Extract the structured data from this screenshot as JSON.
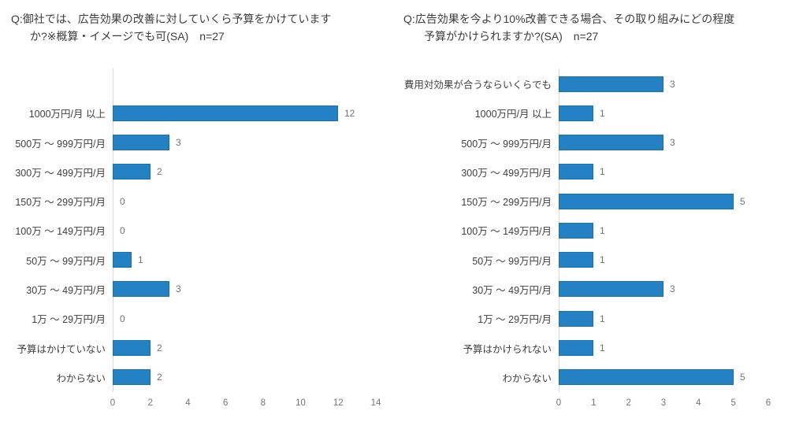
{
  "colors": {
    "bar": "#2381C4",
    "bar_border": "#1A6FAE",
    "axis_line": "#D9D9D9",
    "title_text": "#3C3C3C",
    "category_text": "#404040",
    "value_text": "#737373",
    "tick_text": "#757575",
    "background": "#FFFFFF"
  },
  "chart_data": [
    {
      "id": "current-budget",
      "type": "bar",
      "orientation": "horizontal",
      "title": "Q:御社では、広告効果の改善に対していくら予算をかけていますか?※概算・イメージでも可(SA)　n=27",
      "title_lines": [
        "Q:御社では、広告効果の改善に対していくら予算をかけています",
        "か?※概算・イメージでも可(SA)　n=27"
      ],
      "n": 27,
      "categories": [
        "1000万円/月 以上",
        "500万 〜 999万円/月",
        "300万 〜 499万円/月",
        "150万 〜 299万円/月",
        "100万 〜 149万円/月",
        "50万 〜 99万円/月",
        "30万 〜 49万円/月",
        "1万 〜 29万円/月",
        "予算はかけていない",
        "わからない"
      ],
      "values": [
        12,
        3,
        2,
        0,
        0,
        1,
        3,
        0,
        2,
        2
      ],
      "xlim": [
        0,
        14
      ],
      "xticks": [
        0,
        2,
        4,
        6,
        8,
        10,
        12,
        14
      ],
      "leading_empty_rows": 1,
      "grid": false,
      "legend": false,
      "data_labels": true
    },
    {
      "id": "improvement-budget",
      "type": "bar",
      "orientation": "horizontal",
      "title": "Q:広告効果を今より10%改善できる場合、その取り組みにどの程度予算がかけられますか?(SA)　n=27",
      "title_lines": [
        "Q:広告効果を今より10%改善できる場合、その取り組みにどの程度",
        "予算がかけられますか?(SA)　n=27"
      ],
      "n": 27,
      "categories": [
        "費用対効果が合うならいくらでも",
        "1000万円/月 以上",
        "500万 〜 999万円/月",
        "300万 〜 499万円/月",
        "150万 〜 299万円/月",
        "100万 〜 149万円/月",
        "50万 〜 99万円/月",
        "30万 〜 49万円/月",
        "1万 〜 29万円/月",
        "予算はかけられない",
        "わからない"
      ],
      "values": [
        3,
        1,
        3,
        1,
        5,
        1,
        1,
        3,
        1,
        1,
        5
      ],
      "xlim": [
        0,
        6
      ],
      "xticks": [
        0,
        1,
        2,
        3,
        4,
        5,
        6
      ],
      "leading_empty_rows": 0,
      "grid": false,
      "legend": false,
      "data_labels": true
    }
  ]
}
